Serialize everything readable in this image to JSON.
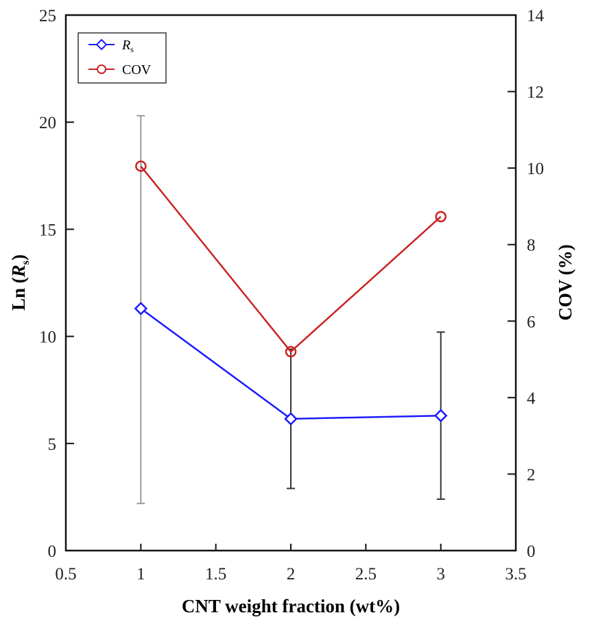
{
  "chart_data": {
    "type": "line",
    "title": "",
    "xlabel": "CNT weight fraction (wt%)",
    "ylabel_left": {
      "prefix": "Ln (",
      "var": "R",
      "sub": "s",
      "suffix": ")"
    },
    "ylabel_right": "COV (%)",
    "xlim": [
      0.5,
      3.5
    ],
    "xticks": [
      "0.5",
      "1",
      "1.5",
      "2",
      "2.5",
      "3",
      "3.5"
    ],
    "ylim_left": [
      0,
      25
    ],
    "yticks_left": [
      "0",
      "5",
      "10",
      "15",
      "20",
      "25"
    ],
    "ylim_right": [
      0,
      14
    ],
    "yticks_right": [
      "0",
      "2",
      "4",
      "6",
      "8",
      "10",
      "12",
      "14"
    ],
    "grid": false,
    "legend_position": "top-left",
    "x": [
      1,
      2,
      3
    ],
    "series": [
      {
        "name": "Rs",
        "legend_var": "R",
        "legend_sub": "s",
        "axis": "left",
        "color": "#1a1aff",
        "marker": "diamond",
        "values": [
          11.3,
          6.15,
          6.3
        ],
        "error_low": [
          2.2,
          2.9,
          2.4
        ],
        "error_high": [
          20.3,
          9.4,
          10.2
        ],
        "error_colors": [
          "#9a9a9a",
          "#333333",
          "#333333"
        ]
      },
      {
        "name": "COV",
        "axis": "right",
        "color": "#cc2020",
        "marker": "circle",
        "values": [
          10.05,
          5.2,
          8.73
        ]
      }
    ]
  }
}
